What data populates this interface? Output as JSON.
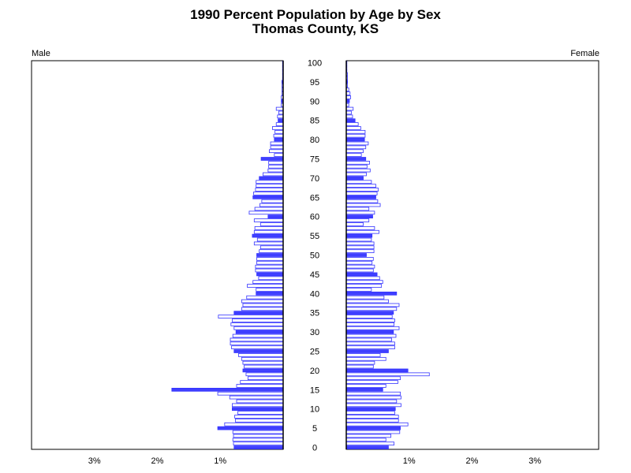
{
  "chart_data": {
    "type": "bar",
    "title": "1990 Percent Population by Age by Sex",
    "subtitle": "Thomas County, KS",
    "left_label": "Male",
    "right_label": "Female",
    "age_labels": [
      "0",
      "5",
      "10",
      "15",
      "20",
      "25",
      "30",
      "35",
      "40",
      "45",
      "50",
      "55",
      "60",
      "65",
      "70",
      "75",
      "80",
      "85",
      "90",
      "95",
      "100"
    ],
    "x_tick_labels": [
      "3%",
      "2%",
      "1%",
      "1%",
      "2%",
      "3%"
    ],
    "x_range_percent": [
      0,
      4
    ],
    "grid": false,
    "highlight_every_n_years": 5,
    "colors": {
      "bar_fill": "#ffffff",
      "bar_edge": "#3333ff",
      "highlight_fill": "#3f3fff",
      "axis": "#000000"
    },
    "series": [
      {
        "name": "Male",
        "values": [
          0.78,
          0.79,
          0.8,
          0.79,
          0.8,
          1.04,
          0.93,
          0.76,
          0.77,
          0.72,
          0.81,
          0.81,
          0.74,
          0.85,
          1.04,
          1.77,
          0.74,
          0.68,
          0.56,
          0.59,
          0.64,
          0.62,
          0.64,
          0.66,
          0.71,
          0.78,
          0.82,
          0.84,
          0.84,
          0.8,
          0.75,
          0.78,
          0.83,
          0.81,
          1.03,
          0.78,
          0.66,
          0.64,
          0.66,
          0.58,
          0.43,
          0.43,
          0.57,
          0.48,
          0.39,
          0.42,
          0.44,
          0.44,
          0.42,
          0.42,
          0.42,
          0.38,
          0.36,
          0.46,
          0.41,
          0.49,
          0.46,
          0.45,
          0.36,
          0.46,
          0.24,
          0.54,
          0.45,
          0.37,
          0.34,
          0.48,
          0.47,
          0.44,
          0.43,
          0.43,
          0.38,
          0.32,
          0.24,
          0.23,
          0.23,
          0.35,
          0.14,
          0.22,
          0.2,
          0.2,
          0.14,
          0.15,
          0.13,
          0.17,
          0.11,
          0.08,
          0.09,
          0.07,
          0.11,
          0.03,
          0.03,
          0.03,
          0.02,
          0.02,
          0.02,
          0.02,
          0.01,
          0.01,
          0.01,
          0.01,
          0.01
        ]
      },
      {
        "name": "Female",
        "values": [
          0.67,
          0.76,
          0.63,
          0.71,
          0.85,
          0.86,
          0.98,
          0.83,
          0.83,
          0.77,
          0.78,
          0.87,
          0.8,
          0.87,
          0.86,
          0.58,
          0.63,
          0.82,
          0.86,
          1.32,
          0.98,
          0.43,
          0.45,
          0.63,
          0.54,
          0.67,
          0.77,
          0.77,
          0.72,
          0.79,
          0.75,
          0.84,
          0.76,
          0.77,
          0.73,
          0.75,
          0.8,
          0.84,
          0.67,
          0.6,
          0.8,
          0.4,
          0.56,
          0.58,
          0.53,
          0.49,
          0.43,
          0.45,
          0.41,
          0.43,
          0.32,
          0.44,
          0.44,
          0.44,
          0.4,
          0.41,
          0.52,
          0.45,
          0.27,
          0.36,
          0.42,
          0.45,
          0.36,
          0.54,
          0.5,
          0.47,
          0.49,
          0.51,
          0.47,
          0.4,
          0.27,
          0.32,
          0.38,
          0.33,
          0.37,
          0.31,
          0.24,
          0.27,
          0.31,
          0.35,
          0.29,
          0.3,
          0.3,
          0.23,
          0.19,
          0.14,
          0.1,
          0.08,
          0.11,
          0.04,
          0.05,
          0.07,
          0.06,
          0.04,
          0.02,
          0.02,
          0.02,
          0.02,
          0.01,
          0.01,
          0.01
        ]
      }
    ]
  }
}
